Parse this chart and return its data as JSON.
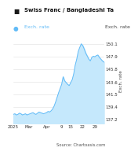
{
  "title": "Swiss Franc / Bangladeshi Ta",
  "legend_label": "Exch. rate",
  "ylabel": "Exch. rate",
  "source": "Source: Chartoasis.com",
  "xlim": [
    0,
    60
  ],
  "ylim": [
    136.5,
    151.2
  ],
  "yticks": [
    137.2,
    139.4,
    141.5,
    143.6,
    145.8,
    147.9,
    150.1
  ],
  "xtick_labels": [
    "2025",
    "Mar",
    "Apr",
    "9",
    "15",
    "22",
    "29"
  ],
  "xtick_positions": [
    0,
    10,
    22,
    32,
    38,
    46,
    54
  ],
  "line_color": "#62bbf7",
  "fill_color": "#c5e8fc",
  "bg_color": "#ffffff",
  "title_box_color": "#1a1a1a",
  "dot_color": "#62bbf7",
  "x": [
    0,
    1,
    2,
    3,
    4,
    5,
    6,
    7,
    8,
    9,
    10,
    11,
    12,
    13,
    14,
    15,
    16,
    17,
    18,
    19,
    20,
    21,
    22,
    23,
    24,
    25,
    26,
    27,
    28,
    29,
    30,
    31,
    32,
    33,
    34,
    35,
    36,
    37,
    38,
    39,
    40,
    41,
    42,
    43,
    44,
    45,
    46,
    47,
    48,
    49,
    50,
    51,
    52,
    53,
    54,
    55,
    56,
    57,
    58,
    59,
    60
  ],
  "y": [
    138.1,
    138.2,
    138.0,
    138.1,
    138.3,
    138.2,
    138.0,
    138.1,
    138.2,
    138.0,
    138.1,
    138.2,
    138.3,
    138.4,
    138.2,
    138.1,
    138.3,
    138.5,
    138.4,
    138.3,
    138.2,
    138.3,
    138.4,
    138.6,
    138.5,
    138.7,
    139.0,
    139.5,
    140.2,
    141.0,
    141.8,
    142.5,
    143.2,
    144.5,
    143.8,
    143.5,
    143.2,
    143.0,
    143.5,
    144.0,
    145.0,
    146.5,
    147.5,
    148.8,
    149.5,
    150.1,
    149.8,
    149.2,
    148.5,
    148.0,
    147.5,
    147.2,
    147.8,
    148.0,
    147.9,
    148.1,
    148.2,
    147.8,
    147.5,
    147.2,
    147.0
  ]
}
